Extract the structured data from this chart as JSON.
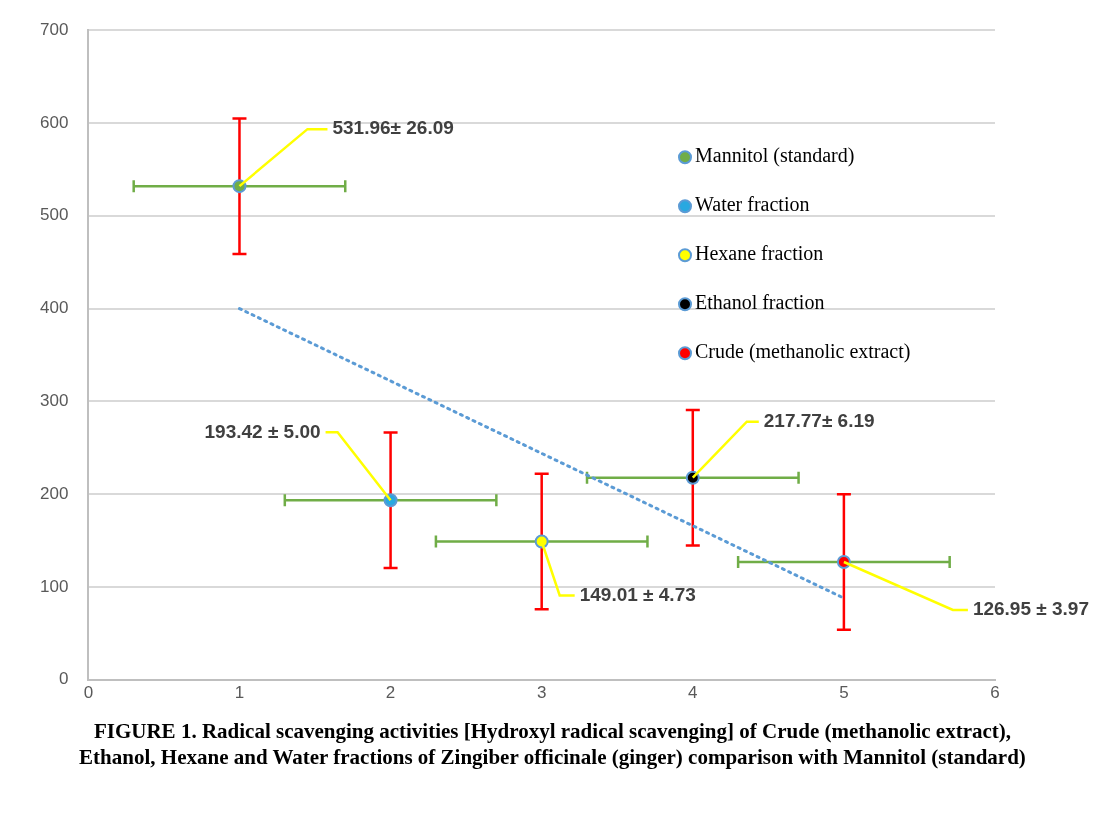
{
  "chart_data": {
    "type": "scatter",
    "title": "FIGURE 1. Radical scavenging activities [Hydroxyl radical scavenging] of Crude (methanolic extract), Ethanol, Hexane and Water fractions of Zingiber officinale (ginger) comparison with Mannitol (standard)",
    "xlim": [
      0,
      6
    ],
    "xticks": [
      0,
      1,
      2,
      3,
      4,
      5,
      6
    ],
    "ylim": [
      0,
      700
    ],
    "yticks": [
      0,
      100,
      200,
      300,
      400,
      500,
      600,
      700
    ],
    "grid": "y",
    "legend": "top right",
    "marker": "circle",
    "series": [
      {
        "name": "Mannitol (standard)",
        "color": "#70ad47",
        "x": [
          1
        ],
        "values": [
          531.96
        ],
        "errors": [
          73
        ],
        "xerrors": [
          0.7
        ]
      },
      {
        "name": "Water fraction",
        "color": "#29a8e0",
        "x": [
          2
        ],
        "values": [
          193.42
        ],
        "errors": [
          73
        ],
        "xerrors": [
          0.7
        ]
      },
      {
        "name": "Hexane fraction",
        "color": "#ffff00",
        "x": [
          3
        ],
        "values": [
          149.01
        ],
        "errors": [
          73
        ],
        "xerrors": [
          0.7
        ]
      },
      {
        "name": "Ethanol fraction",
        "color": "#000000",
        "x": [
          4
        ],
        "values": [
          217.77
        ],
        "errors": [
          73
        ],
        "xerrors": [
          0.7
        ]
      },
      {
        "name": "Crude (methanolic extract)",
        "color": "#ff0000",
        "x": [
          5
        ],
        "values": [
          126.95
        ],
        "errors": [
          73
        ],
        "xerrors": [
          0.7
        ]
      },
      {
        "type": "line",
        "color": "#5b9bd5",
        "x": [
          1,
          5
        ],
        "values": [
          400,
          88
        ],
        "line_style": "dotted",
        "marker": "none"
      }
    ],
    "annotations": [
      {
        "text": "531.96± 26.09",
        "x": 1,
        "y": 531.96
      },
      {
        "text": "193.42 ± 5.00",
        "x": 2,
        "y": 193.42
      },
      {
        "text": "149.01 ± 4.73",
        "x": 3,
        "y": 149.01
      },
      {
        "text": "217.77± 6.19",
        "x": 4,
        "y": 217.77
      },
      {
        "text": "126.95 ± 3.97",
        "x": 5,
        "y": 126.95
      }
    ]
  }
}
